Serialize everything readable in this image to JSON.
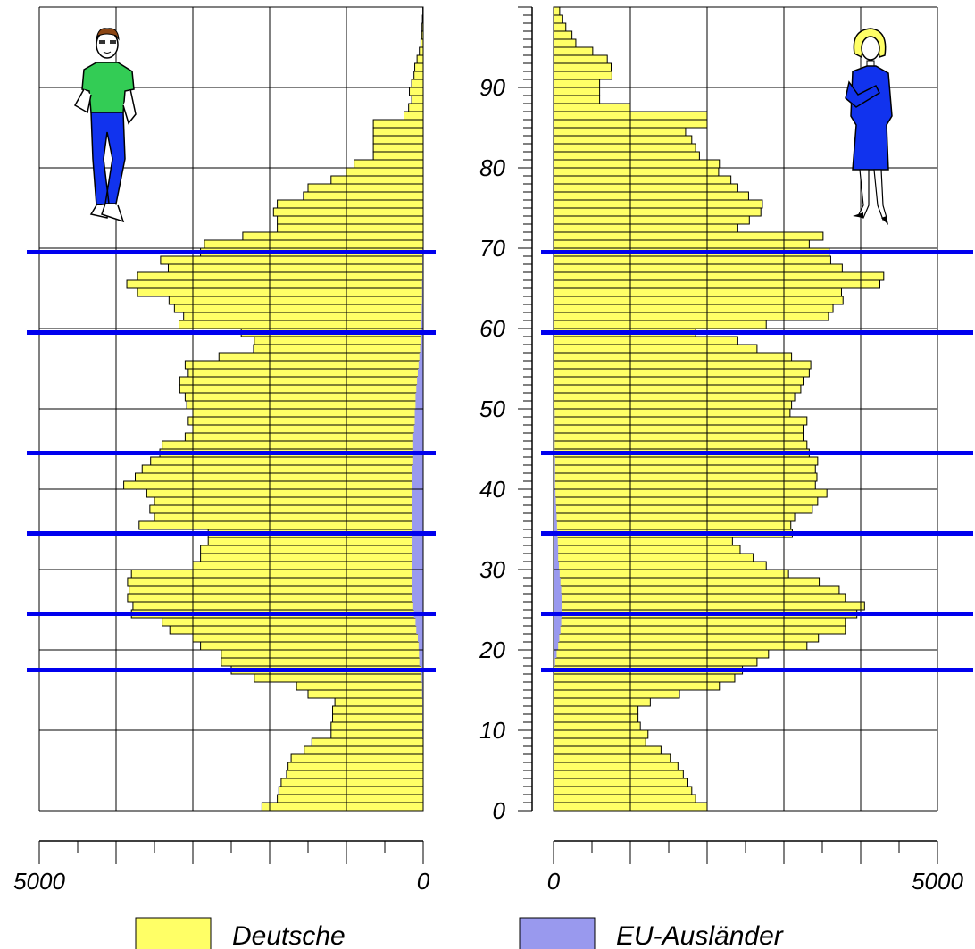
{
  "chart_data": {
    "type": "bar",
    "orientation": "horizontal-population-pyramid",
    "ages": [
      0,
      1,
      2,
      3,
      4,
      5,
      6,
      7,
      8,
      9,
      10,
      11,
      12,
      13,
      14,
      15,
      16,
      17,
      18,
      19,
      20,
      21,
      22,
      23,
      24,
      25,
      26,
      27,
      28,
      29,
      30,
      31,
      32,
      33,
      34,
      35,
      36,
      37,
      38,
      39,
      40,
      41,
      42,
      43,
      44,
      45,
      46,
      47,
      48,
      49,
      50,
      51,
      52,
      53,
      54,
      55,
      56,
      57,
      58,
      59,
      60,
      61,
      62,
      63,
      64,
      65,
      66,
      67,
      68,
      69,
      70,
      71,
      72,
      73,
      74,
      75,
      76,
      77,
      78,
      79,
      80,
      81,
      82,
      83,
      84,
      85,
      86,
      87,
      88,
      89,
      90,
      91,
      92,
      93,
      94,
      95,
      96,
      97,
      98,
      99
    ],
    "y_ticks": [
      "0",
      "10",
      "20",
      "30",
      "40",
      "50",
      "60",
      "70",
      "80",
      "90"
    ],
    "x_tick_labels": {
      "left_min": "5000",
      "left_max": "0",
      "right_min": "0",
      "right_max": "5000"
    },
    "xlim": [
      0,
      5000
    ],
    "ylim": [
      0,
      100
    ],
    "grid": true,
    "highlight_ages": [
      17.5,
      24.5,
      34.5,
      44.5,
      59.5,
      69.5
    ],
    "legend_placement": "bottom",
    "series": [
      {
        "name": "Deutsche",
        "color": "#ffff66",
        "side": "left",
        "values": [
          2100,
          1900,
          1880,
          1850,
          1780,
          1760,
          1720,
          1550,
          1450,
          1200,
          1200,
          1180,
          1180,
          1150,
          1500,
          1650,
          2200,
          2500,
          2630,
          2630,
          2900,
          3000,
          3300,
          3400,
          3800,
          3780,
          3850,
          3830,
          3850,
          3800,
          3000,
          2900,
          2900,
          2800,
          2800,
          3700,
          3500,
          3560,
          3500,
          3600,
          3900,
          3750,
          3660,
          3550,
          3430,
          3400,
          3100,
          3000,
          3060,
          3000,
          3080,
          3100,
          3170,
          3170,
          3060,
          3100,
          2660,
          2210,
          2200,
          2370,
          3180,
          3120,
          3240,
          3310,
          3720,
          3860,
          3720,
          3320,
          3420,
          2900,
          2850,
          2350,
          1900,
          1900,
          1950,
          1900,
          1560,
          1500,
          1200,
          1000,
          900,
          650,
          650,
          650,
          650,
          650,
          250,
          190,
          150,
          180,
          150,
          120,
          110,
          80,
          50,
          30,
          20,
          15,
          10,
          5
        ]
      },
      {
        "name": "EU-Ausländer",
        "color": "#9999ee",
        "side": "left",
        "values": [
          5,
          5,
          5,
          5,
          5,
          5,
          5,
          5,
          5,
          10,
          10,
          10,
          10,
          10,
          15,
          15,
          20,
          25,
          50,
          55,
          60,
          70,
          90,
          100,
          120,
          130,
          140,
          150,
          150,
          150,
          140,
          140,
          150,
          150,
          150,
          150,
          150,
          150,
          140,
          140,
          140,
          140,
          140,
          130,
          130,
          130,
          130,
          120,
          110,
          110,
          100,
          100,
          90,
          80,
          70,
          60,
          50,
          40,
          35,
          30,
          25,
          20,
          20,
          15,
          15,
          15,
          10,
          10,
          10,
          10,
          5,
          5,
          5,
          5,
          5,
          5,
          5,
          5,
          5,
          5,
          5,
          5,
          5,
          5,
          5,
          5,
          5,
          5,
          5,
          5,
          5,
          5,
          5,
          5,
          5,
          5,
          5,
          5,
          5,
          5
        ]
      },
      {
        "name": "Deutsche",
        "color": "#ffff66",
        "side": "right",
        "values": [
          2000,
          1850,
          1800,
          1750,
          1690,
          1620,
          1520,
          1400,
          1200,
          1230,
          1130,
          1100,
          1100,
          1260,
          1640,
          2160,
          2360,
          2460,
          2650,
          2800,
          3300,
          3450,
          3800,
          3800,
          3950,
          4050,
          3800,
          3720,
          3460,
          3060,
          2770,
          2600,
          2430,
          2330,
          3110,
          3090,
          3140,
          3370,
          3440,
          3560,
          3410,
          3430,
          3410,
          3440,
          3330,
          3300,
          3250,
          3250,
          3300,
          3080,
          3100,
          3140,
          3220,
          3250,
          3330,
          3350,
          3100,
          2650,
          2400,
          1850,
          2770,
          3580,
          3640,
          3770,
          3750,
          4250,
          4300,
          3760,
          3610,
          3590,
          3330,
          3510,
          2400,
          2550,
          2700,
          2720,
          2540,
          2400,
          2310,
          2150,
          2160,
          1900,
          1850,
          1800,
          1720,
          2000,
          2000,
          1000,
          600,
          600,
          600,
          760,
          750,
          700,
          510,
          290,
          240,
          160,
          120,
          80
        ]
      },
      {
        "name": "EU-Ausländer",
        "color": "#9999ee",
        "side": "right",
        "values": [
          5,
          5,
          5,
          5,
          5,
          5,
          5,
          5,
          5,
          5,
          5,
          5,
          5,
          5,
          5,
          5,
          5,
          10,
          20,
          40,
          60,
          75,
          90,
          100,
          110,
          110,
          110,
          100,
          90,
          80,
          70,
          60,
          60,
          55,
          50,
          45,
          40,
          35,
          30,
          25,
          20,
          20,
          20,
          20,
          15,
          15,
          15,
          15,
          15,
          15,
          10,
          10,
          10,
          10,
          10,
          10,
          10,
          10,
          10,
          5,
          5,
          5,
          5,
          5,
          5,
          5,
          5,
          5,
          5,
          5,
          5,
          5,
          5,
          5,
          5,
          5,
          5,
          5,
          5,
          5,
          5,
          5,
          5,
          5,
          5,
          5,
          5,
          5,
          5,
          5,
          5,
          5,
          5,
          5,
          5,
          5,
          5,
          5,
          5,
          5
        ]
      }
    ],
    "legend": [
      {
        "label": "Deutsche",
        "color": "#ffff66"
      },
      {
        "label": "EU-Ausländer",
        "color": "#9999ee"
      }
    ],
    "highlight_color": "#0000ee"
  }
}
